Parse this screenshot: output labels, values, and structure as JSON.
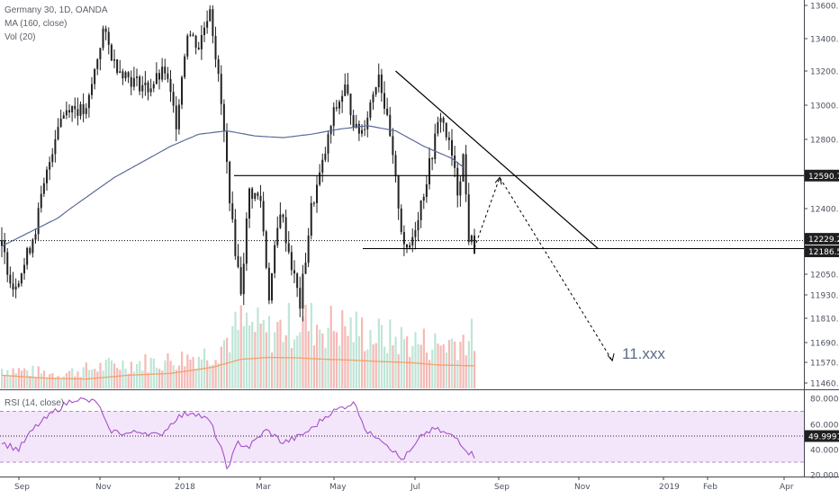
{
  "legend": {
    "symbol_line": "Germany 30, 1D, OANDA",
    "ma_line": "MA (160, close)",
    "vol_line": "Vol (20)",
    "rsi_line": "RSI (14, close)"
  },
  "annotation": {
    "target_text": "11.xxx"
  },
  "colors": {
    "up": "#26a69a",
    "down": "#ef5350",
    "candle": "#222222",
    "ma": "#5b6b9a",
    "vol_ma": "#f4a06b",
    "rsi": "#a64fc9",
    "rsi_band": "#f3e6fb",
    "grid": "#eef0f3",
    "axis_text": "#4c525e",
    "badge_bg": "#1f1f1f",
    "badge_text": "#ffffff"
  },
  "chart_data": {
    "type": "candlestick",
    "title": "Germany 30, 1D, OANDA",
    "price_axis": {
      "ticks": [
        "13600.0",
        "13400.0",
        "13200.0",
        "13000.0",
        "12800.0",
        "12590.7",
        "12400.0",
        "12229.2",
        "12186.5",
        "12050.0",
        "11930.0",
        "11810.0",
        "11690.0",
        "11570.0",
        "11460.0"
      ],
      "ylim": [
        11460,
        13600
      ]
    },
    "rsi_axis": {
      "ticks": [
        "80.0000",
        "60.0000",
        "49.9991",
        "40.0000",
        "20.0000"
      ],
      "ylim": [
        20,
        85
      ]
    },
    "x_ticks": [
      "Sep",
      "Nov",
      "2018",
      "Mar",
      "May",
      "Jul",
      "Sep",
      "Nov",
      "2019",
      "Feb",
      "Apr"
    ],
    "price_labels": [
      {
        "text": "12590.7",
        "value": 12590.7
      },
      {
        "text": "12229.2",
        "value": 12229.2
      },
      {
        "text": "12186.5",
        "value": 12186.5
      }
    ],
    "rsi_label": {
      "text": "49.9991",
      "value": 49.9991
    },
    "candle_path": [
      [
        0,
        12200
      ],
      [
        4,
        11980
      ],
      [
        8,
        12100
      ],
      [
        12,
        12300
      ],
      [
        16,
        12600
      ],
      [
        20,
        12900
      ],
      [
        24,
        13000
      ],
      [
        30,
        12950
      ],
      [
        36,
        13450
      ],
      [
        40,
        13250
      ],
      [
        46,
        13150
      ],
      [
        52,
        13100
      ],
      [
        58,
        13200
      ],
      [
        62,
        12900
      ],
      [
        66,
        13450
      ],
      [
        70,
        13350
      ],
      [
        74,
        13600
      ],
      [
        78,
        13000
      ],
      [
        82,
        12300
      ],
      [
        85,
        11960
      ],
      [
        88,
        12500
      ],
      [
        92,
        12450
      ],
      [
        95,
        11930
      ],
      [
        99,
        12400
      ],
      [
        103,
        12100
      ],
      [
        106,
        11880
      ],
      [
        110,
        12400
      ],
      [
        114,
        12650
      ],
      [
        118,
        12950
      ],
      [
        122,
        13100
      ],
      [
        126,
        12850
      ],
      [
        128,
        12850
      ],
      [
        130,
        12950
      ],
      [
        134,
        13200
      ],
      [
        138,
        12800
      ],
      [
        142,
        12300
      ],
      [
        144,
        12150
      ],
      [
        146,
        12250
      ],
      [
        150,
        12500
      ],
      [
        154,
        12800
      ],
      [
        156,
        12950
      ],
      [
        160,
        12700
      ],
      [
        162,
        12500
      ],
      [
        164,
        12700
      ],
      [
        166,
        12250
      ],
      [
        168,
        12190
      ]
    ],
    "ma_path": [
      [
        0,
        12200
      ],
      [
        20,
        12350
      ],
      [
        40,
        12580
      ],
      [
        60,
        12760
      ],
      [
        70,
        12830
      ],
      [
        80,
        12850
      ],
      [
        90,
        12820
      ],
      [
        100,
        12810
      ],
      [
        110,
        12830
      ],
      [
        120,
        12860
      ],
      [
        130,
        12880
      ],
      [
        140,
        12850
      ],
      [
        150,
        12760
      ],
      [
        160,
        12690
      ],
      [
        164,
        12640
      ]
    ],
    "volume_path": [
      [
        0,
        0.25
      ],
      [
        20,
        0.18
      ],
      [
        40,
        0.3
      ],
      [
        60,
        0.35
      ],
      [
        75,
        0.45
      ],
      [
        85,
        0.8
      ],
      [
        95,
        0.7
      ],
      [
        105,
        0.85
      ],
      [
        115,
        0.8
      ],
      [
        125,
        0.75
      ],
      [
        135,
        0.65
      ],
      [
        145,
        0.6
      ],
      [
        155,
        0.55
      ],
      [
        168,
        0.65
      ]
    ],
    "vol_ma_path": [
      [
        0,
        0.28
      ],
      [
        15,
        0.22
      ],
      [
        30,
        0.2
      ],
      [
        45,
        0.28
      ],
      [
        60,
        0.32
      ],
      [
        75,
        0.45
      ],
      [
        85,
        0.62
      ],
      [
        95,
        0.66
      ],
      [
        105,
        0.65
      ],
      [
        115,
        0.62
      ],
      [
        125,
        0.6
      ],
      [
        135,
        0.57
      ],
      [
        145,
        0.55
      ],
      [
        155,
        0.5
      ],
      [
        168,
        0.48
      ]
    ],
    "rsi_path": [
      [
        0,
        45
      ],
      [
        6,
        40
      ],
      [
        12,
        58
      ],
      [
        20,
        72
      ],
      [
        26,
        80
      ],
      [
        30,
        78
      ],
      [
        34,
        77
      ],
      [
        38,
        55
      ],
      [
        44,
        52
      ],
      [
        50,
        54
      ],
      [
        56,
        50
      ],
      [
        62,
        65
      ],
      [
        68,
        70
      ],
      [
        74,
        62
      ],
      [
        78,
        40
      ],
      [
        80,
        25
      ],
      [
        84,
        45
      ],
      [
        88,
        42
      ],
      [
        94,
        55
      ],
      [
        100,
        45
      ],
      [
        106,
        50
      ],
      [
        110,
        56
      ],
      [
        116,
        68
      ],
      [
        120,
        72
      ],
      [
        124,
        76
      ],
      [
        126,
        75
      ],
      [
        130,
        52
      ],
      [
        134,
        50
      ],
      [
        138,
        42
      ],
      [
        142,
        32
      ],
      [
        146,
        40
      ],
      [
        150,
        52
      ],
      [
        154,
        56
      ],
      [
        158,
        52
      ],
      [
        162,
        48
      ],
      [
        166,
        38
      ],
      [
        168,
        35
      ]
    ],
    "trendline_desc": [
      [
        140,
        13200
      ],
      [
        212,
        12186
      ]
    ],
    "horizontal_levels": [
      12590.7,
      12229.2,
      12186.5
    ],
    "projection": [
      [
        168,
        12190
      ],
      [
        177,
        12580
      ],
      [
        217,
        11580
      ]
    ]
  }
}
